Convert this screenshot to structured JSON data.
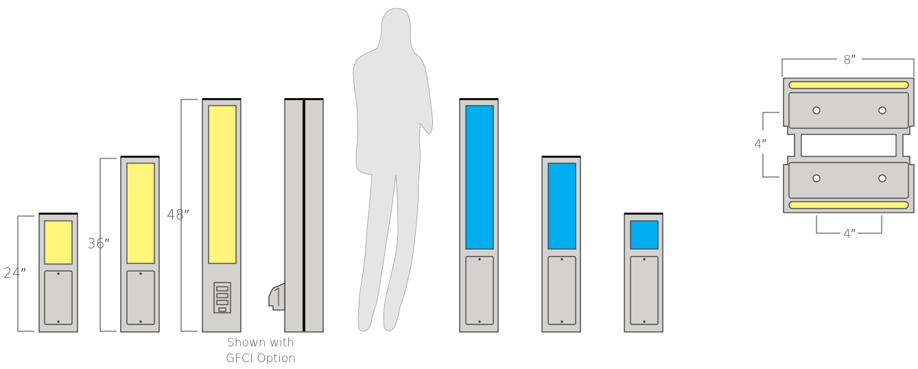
{
  "colors": {
    "housing": "#d3d2d0",
    "outline": "#333333",
    "cap": "#111111",
    "warm_lens": "#fff57a",
    "cool_lens": "#00aeef",
    "silhouette": "#e5e5e5"
  },
  "bollards": {
    "dims": [
      "24″",
      "36″",
      "48″"
    ]
  },
  "gfci": {
    "caption_line1": "Shown with",
    "caption_line2": "GFCI Option"
  },
  "section": {
    "width_label": "8″",
    "height_label": "4″",
    "bottom_label": "4″"
  }
}
